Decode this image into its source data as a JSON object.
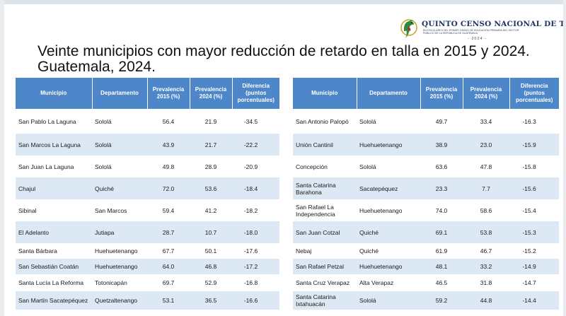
{
  "header": {
    "census_title": "QUINTO CENSO NACIONAL DE TALLA",
    "census_subtitle": "EN ESCOLARES DEL PRIMER GRADO DE EDUCACIÓN PRIMARIA DEL SECTOR PÚBLICO DE LA REPÚBLICA DE GUATEMALA",
    "census_year": "- 2024 -"
  },
  "slide": {
    "title_line1": "Veinte municipios con mayor reducción de retardo en talla en 2015 y 2024.",
    "title_line2": "Guatemala, 2024."
  },
  "colors": {
    "header_blue": "#4e86ca",
    "stripe": "#dce8f4"
  },
  "columns": [
    "Municipio",
    "Departamento",
    "Prevalencia 2015 (%)",
    "Prevalencia 2024 (%)",
    "Diferencia (puntos porcentuales)"
  ],
  "left_rows": [
    {
      "municipio": "San Pablo La Laguna",
      "departamento": "Sololá",
      "p2015": "56.4",
      "p2024": "21.9",
      "diferencia": "-34.5"
    },
    {
      "municipio": "San Marcos La Laguna",
      "departamento": "Sololá",
      "p2015": "43.9",
      "p2024": "21.7",
      "diferencia": "-22.2"
    },
    {
      "municipio": "San Juan La Laguna",
      "departamento": "Sololá",
      "p2015": "49.8",
      "p2024": "28.9",
      "diferencia": "-20.9"
    },
    {
      "municipio": "Chajul",
      "departamento": "Quiché",
      "p2015": "72.0",
      "p2024": "53.6",
      "diferencia": "-18.4"
    },
    {
      "municipio": "Sibinal",
      "departamento": "San Marcos",
      "p2015": "59.4",
      "p2024": "41.2",
      "diferencia": "-18.2"
    },
    {
      "municipio": "El Adelanto",
      "departamento": "Jutiapa",
      "p2015": "28.7",
      "p2024": "10.7",
      "diferencia": "-18.0"
    },
    {
      "municipio": "Santa Bárbara",
      "departamento": "Huehuetenango",
      "p2015": "67.7",
      "p2024": "50.1",
      "diferencia": "-17.6"
    },
    {
      "municipio": "San Sebastián Coatán",
      "departamento": "Huehuetenango",
      "p2015": "64.0",
      "p2024": "46.8",
      "diferencia": "-17.2"
    },
    {
      "municipio": "Santa Lucía La Reforma",
      "departamento": "Totonicapán",
      "p2015": "69.7",
      "p2024": "52.9",
      "diferencia": "-16.8"
    },
    {
      "municipio": "San Martín Sacatepéquez",
      "departamento": "Quetzaltenango",
      "p2015": "53.1",
      "p2024": "36.5",
      "diferencia": "-16.6"
    }
  ],
  "right_rows": [
    {
      "municipio": "San Antonio Palopó",
      "departamento": "Sololá",
      "p2015": "49.7",
      "p2024": "33.4",
      "diferencia": "-16.3"
    },
    {
      "municipio": "Unión Cantinil",
      "departamento": "Huehuetenango",
      "p2015": "38.9",
      "p2024": "23.0",
      "diferencia": "-15.9"
    },
    {
      "municipio": "Concepción",
      "departamento": "Sololá",
      "p2015": "63.6",
      "p2024": "47.8",
      "diferencia": "-15.8"
    },
    {
      "municipio": "Santa Catarina Barahona",
      "departamento": "Sacatepéquez",
      "p2015": "23.3",
      "p2024": "7.7",
      "diferencia": "-15.6"
    },
    {
      "municipio": "San Rafael La Independencia",
      "departamento": "Huehuetenango",
      "p2015": "74.0",
      "p2024": "58.6",
      "diferencia": "-15.4"
    },
    {
      "municipio": "San Juan Cotzal",
      "departamento": "Quiché",
      "p2015": "69.1",
      "p2024": "53.8",
      "diferencia": "-15.3"
    },
    {
      "municipio": "Nebaj",
      "departamento": "Quiché",
      "p2015": "61.9",
      "p2024": "46.7",
      "diferencia": "-15.2"
    },
    {
      "municipio": "San Rafael Petzal",
      "departamento": "Huehuetenango",
      "p2015": "48.1",
      "p2024": "33.2",
      "diferencia": "-14.9"
    },
    {
      "municipio": "Santa Cruz Verapaz",
      "departamento": "Alta Verapaz",
      "p2015": "46.5",
      "p2024": "31.8",
      "diferencia": "-14.7"
    },
    {
      "municipio": "Santa Catarina Ixtahuacán",
      "departamento": "Sololá",
      "p2015": "59.2",
      "p2024": "44.8",
      "diferencia": "-14.4"
    }
  ]
}
